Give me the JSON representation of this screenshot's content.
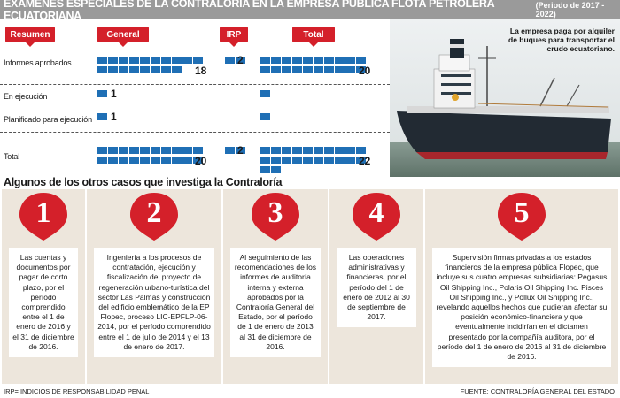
{
  "header": {
    "title": "EXÁMENES ESPECIALES DE LA CONTRALORÍA EN LA EMPRESA PÚBLICA FLOTA PETROLERA ECUATORIANA",
    "period": "(Periodo de 2017 - 2022)"
  },
  "chart_data": {
    "type": "bar",
    "columns": [
      "Resumen",
      "General",
      "IRP",
      "Total"
    ],
    "categories": [
      "Informes aprobados",
      "En ejecución",
      "Planificado para ejecución",
      "Total"
    ],
    "series": [
      {
        "name": "General",
        "values": [
          18,
          1,
          1,
          20
        ]
      },
      {
        "name": "IRP",
        "values": [
          2,
          0,
          0,
          2
        ]
      },
      {
        "name": "Total",
        "values": [
          20,
          1,
          1,
          22
        ]
      }
    ],
    "value_labels": {
      "General": [
        "18",
        "1",
        "1",
        "20"
      ],
      "IRP": [
        "2",
        "",
        "",
        "2"
      ],
      "Total": [
        "20",
        "",
        "",
        "22"
      ]
    },
    "bar_color": "#1f6fb5",
    "badge_color": "#d4202a"
  },
  "photo": {
    "caption": "La empresa paga por alquiler de buques para transportar el crudo ecuatoriano."
  },
  "cases": {
    "title": "Algunos de los otros casos que investiga la Contraloría",
    "items": [
      {
        "num": "1",
        "text": "Las cuentas y documentos por pagar de corto plazo, por el período comprendido entre el 1 de enero de 2016 y el 31 de diciembre de 2016."
      },
      {
        "num": "2",
        "text": "Ingeniería a los procesos de contratación, ejecución y fiscalización del proyecto de regeneración urbano-turística del sector Las Palmas y construcción del edificio emblemático de la EP Flopec, proceso LIC-EPFLP-06-2014, por el período comprendido entre el 1 de julio de 2014 y el 13 de enero de 2017."
      },
      {
        "num": "3",
        "text": "Al seguimiento de las recomendaciones de los informes de auditoría interna y externa aprobados por la Contraloría General del Estado, por el período de 1 de enero de 2013 al 31 de diciembre de 2016."
      },
      {
        "num": "4",
        "text": "Las operaciones administrativas y financieras, por el período del 1 de enero de 2012 al 30 de septiembre de 2017."
      },
      {
        "num": "5",
        "text": "Supervisión firmas privadas a los estados financieros de la empresa pública Flopec, que incluye sus cuatro empresas subsidiarias: Pegasus Oil Shipping Inc., Polaris Oil Shipping Inc. Pisces Oil Shipping Inc., y Pollux Oil Shipping Inc., revelando aquellos hechos que pudieran afectar su posición económico-financiera y que eventualmente incidirían en el dictamen presentado por la compañía auditora, por el período del 1 de enero de 2016 al 31 de diciembre de 2016."
      }
    ]
  },
  "footer": {
    "note": "IRP= INDICIOS DE RESPONSABILIDAD PENAL",
    "source": "FUENTE: CONTRALORÍA GENERAL DEL ESTADO"
  },
  "icons": {
    "pin": "map-pin-icon",
    "ship": "ship-icon"
  }
}
